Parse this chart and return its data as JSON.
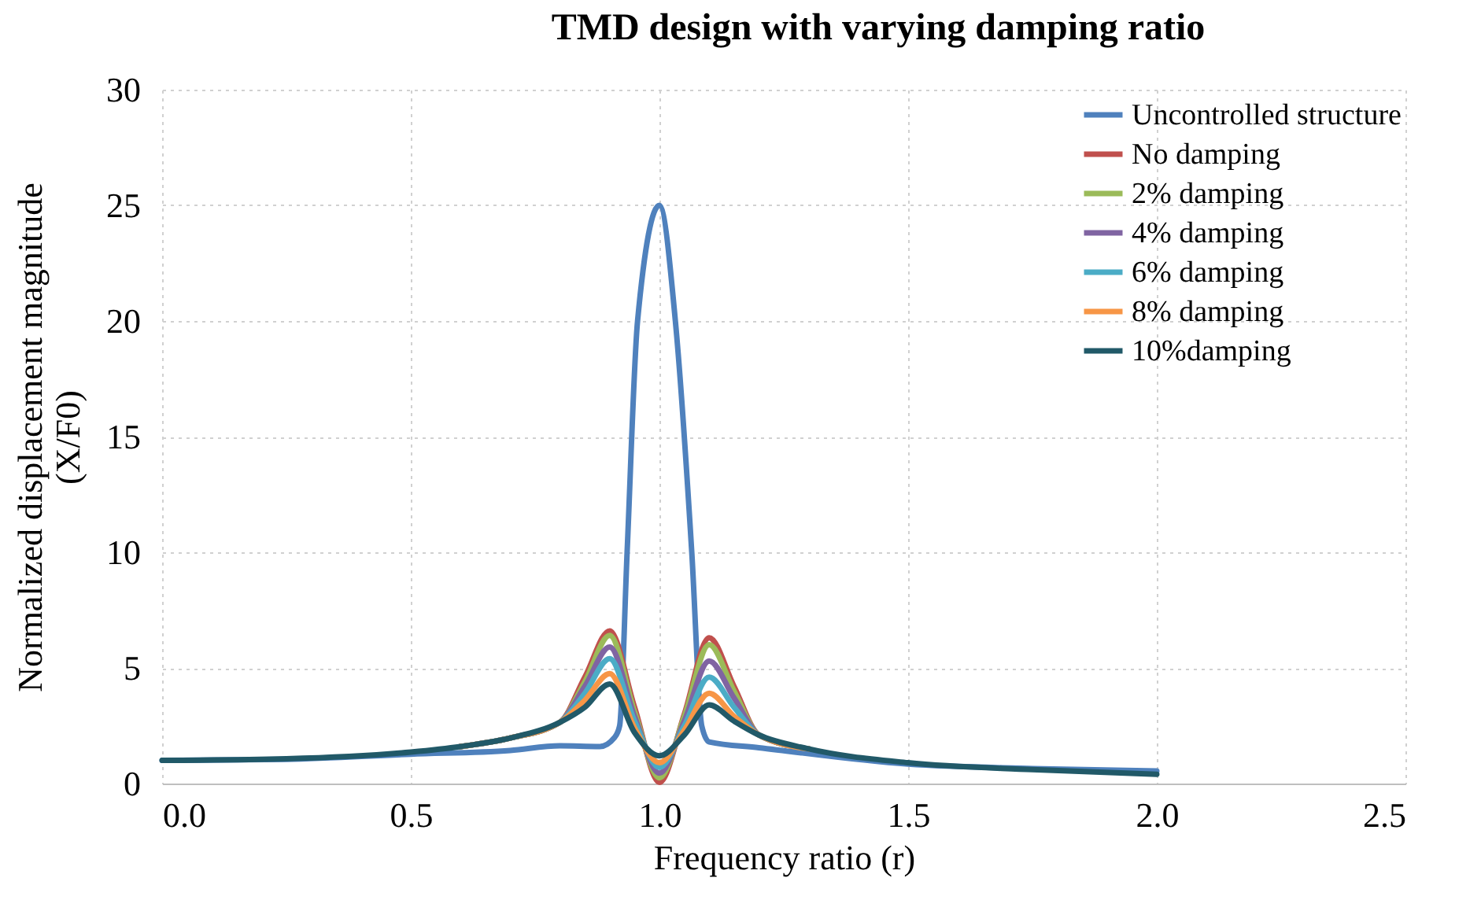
{
  "chart_data": {
    "type": "line",
    "title": "TMD design with varying damping ratio",
    "xlabel": "Frequency ratio (r)",
    "ylabel": "Normalized displacement magnitude\n(X/F0)",
    "xlim": [
      0,
      2.5
    ],
    "xticks": [
      {
        "value": 0,
        "label": "0.0"
      },
      {
        "value": 0.5,
        "label": "0.5"
      },
      {
        "value": 1,
        "label": "1.0"
      },
      {
        "value": 1.5,
        "label": "1.5"
      },
      {
        "value": 2,
        "label": "2.0"
      },
      {
        "value": 2.5,
        "label": "2.5"
      }
    ],
    "ylim": [
      0,
      30
    ],
    "yticks": [
      0,
      5,
      10,
      15,
      20,
      25,
      30
    ],
    "grid": true,
    "legend": "top right",
    "line_style": "solid",
    "marker": "none",
    "x": [
      0,
      0.25,
      0.5,
      0.6,
      0.7,
      0.8,
      0.85,
      0.9,
      0.95,
      1.0,
      1.05,
      1.1,
      1.15,
      1.2,
      1.3,
      1.5,
      1.75,
      2.0
    ],
    "series": [
      {
        "name": "Uncontrolled structure",
        "color": "#4f81bd",
        "x": [
          0,
          0.25,
          0.5,
          0.7,
          0.8,
          0.88,
          0.91,
          0.92,
          0.935,
          0.956,
          1.0,
          1.032,
          1.065,
          1.085,
          1.1,
          1.2,
          1.5,
          1.75,
          2.0
        ],
        "values": [
          1.0,
          1.05,
          1.27,
          1.43,
          1.63,
          1.6,
          2.0,
          2.5,
          10,
          20,
          25,
          20,
          10,
          2.5,
          1.8,
          1.55,
          0.84,
          0.65,
          0.54
        ]
      },
      {
        "name": "No damping",
        "color": "#c0504d",
        "values": [
          null,
          null,
          null,
          1.6,
          1.97,
          2.65,
          4.6,
          6.6,
          3.3,
          0.05,
          3.0,
          6.3,
          4.2,
          2.1,
          1.5,
          null,
          null,
          null
        ]
      },
      {
        "name": "2% damping",
        "color": "#9bbb59",
        "values": [
          null,
          null,
          null,
          1.6,
          1.97,
          2.65,
          4.4,
          6.4,
          3.1,
          0.25,
          2.9,
          6.0,
          4.0,
          2.1,
          1.5,
          null,
          null,
          null
        ]
      },
      {
        "name": "4% damping",
        "color": "#8064a2",
        "values": [
          null,
          null,
          null,
          1.6,
          1.97,
          2.65,
          4.2,
          5.9,
          2.9,
          0.45,
          2.7,
          5.3,
          3.7,
          2.1,
          1.5,
          null,
          null,
          null
        ]
      },
      {
        "name": "6% damping",
        "color": "#4bacc6",
        "values": [
          null,
          null,
          null,
          1.6,
          1.97,
          2.65,
          3.9,
          5.4,
          2.7,
          0.7,
          2.5,
          4.6,
          3.3,
          2.1,
          1.5,
          null,
          null,
          null
        ]
      },
      {
        "name": "8% damping",
        "color": "#f79646",
        "values": [
          null,
          null,
          null,
          1.6,
          1.97,
          2.65,
          3.6,
          4.75,
          2.4,
          0.9,
          2.3,
          3.9,
          2.9,
          2.1,
          1.5,
          null,
          null,
          null
        ]
      },
      {
        "name": "10%damping",
        "color": "#215968",
        "values": [
          1.0,
          1.07,
          1.36,
          1.6,
          1.97,
          2.65,
          3.3,
          4.3,
          2.2,
          1.2,
          2.1,
          3.4,
          2.7,
          2.1,
          1.5,
          0.9,
          0.6,
          0.4
        ]
      }
    ]
  }
}
